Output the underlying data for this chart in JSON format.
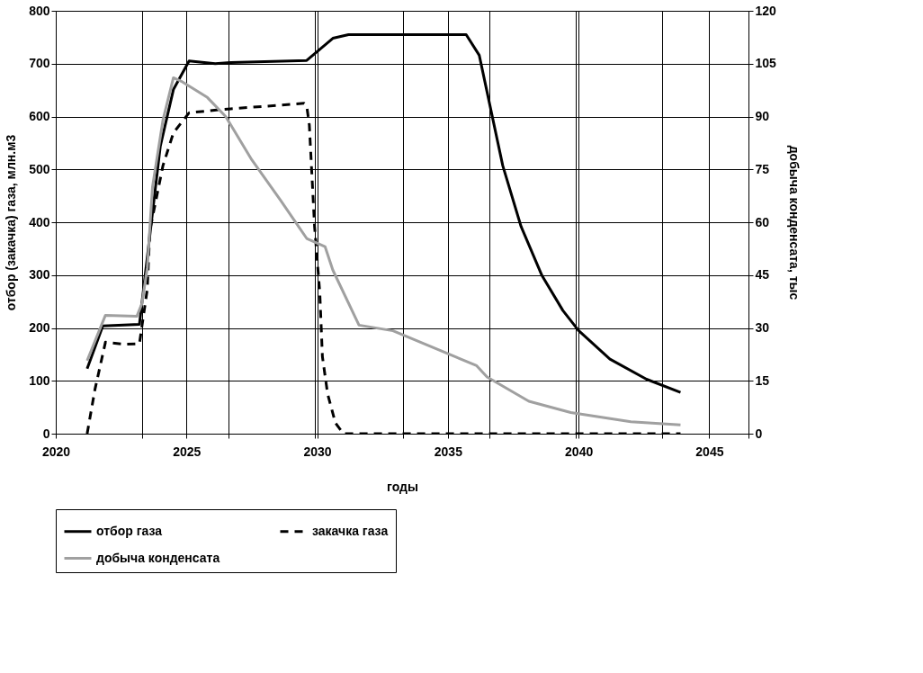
{
  "chart_data": {
    "type": "line",
    "xlabel": "годы",
    "ylabel": "отбор (закачка) газа, млн.м3",
    "y2label": "добыча конденсата, тыс",
    "xlim": [
      2020,
      2046.5
    ],
    "xticks": [
      2020,
      {
        "value": 2023.3,
        "label": null
      },
      2025,
      {
        "value": 2026.6,
        "label": null
      },
      {
        "value": 2029.9,
        "label": null
      },
      2030,
      {
        "value": 2033.3,
        "label": null
      },
      2035,
      {
        "value": 2036.6,
        "label": null
      },
      {
        "value": 2039.9,
        "label": null
      },
      2040,
      {
        "value": 2043.2,
        "label": null
      },
      2045,
      {
        "value": 2046.5,
        "label": null
      }
    ],
    "ylim": [
      0,
      800
    ],
    "yticks": [
      0,
      100,
      200,
      300,
      400,
      500,
      600,
      700,
      800
    ],
    "y2lim": [
      0,
      120
    ],
    "y2ticks": [
      0,
      15,
      30,
      45,
      60,
      75,
      90,
      105,
      120
    ],
    "grid": true,
    "legend": "bottom",
    "series": [
      {
        "name": "отбор газа",
        "color": "#000000",
        "line_style": "solid",
        "x": [
          2021.2,
          2021.8,
          2023.2,
          2024.0,
          2024.5,
          2025.1,
          2026.1,
          2026.7,
          2029.6,
          2030.6,
          2031.2,
          2035.7,
          2036.2,
          2037.1,
          2037.8,
          2038.6,
          2039.4,
          2040.0,
          2041.2,
          2042.6,
          2043.9
        ],
        "values": [
          123,
          204,
          207,
          544,
          651,
          705,
          700,
          702,
          706,
          748,
          755,
          755,
          716,
          507,
          392,
          299,
          233,
          195,
          141,
          103,
          78
        ]
      },
      {
        "name": "закачка газа",
        "color": "#000000",
        "line_style": "dashed",
        "x": [
          2021.2,
          2021.5,
          2021.9,
          2022.6,
          2023.2,
          2023.5,
          2023.6,
          2024.1,
          2024.5,
          2025.1,
          2026.3,
          2029.5,
          2029.6,
          2029.7,
          2029.9,
          2030.1,
          2030.2,
          2030.4,
          2030.7,
          2031.0,
          2043.9
        ],
        "values": [
          0,
          84,
          173,
          169,
          170,
          273,
          385,
          507,
          569,
          607,
          613,
          625,
          620,
          584,
          392,
          267,
          146,
          75,
          20,
          0,
          0
        ]
      },
      {
        "name": "добыча конденсата",
        "color": "#a0a0a0",
        "line_style": "solid",
        "axis": "y2",
        "x": [
          2021.2,
          2021.9,
          2023.1,
          2023.3,
          2023.5,
          2023.7,
          2024.1,
          2024.5,
          2024.8,
          2025.8,
          2026.5,
          2027.5,
          2028.6,
          2029.6,
          2030.3,
          2030.6,
          2031.6,
          2032.9,
          2036.1,
          2036.5,
          2038.1,
          2039.7,
          2042.0,
          2043.9
        ],
        "values": [
          20.7,
          33.6,
          33.3,
          37,
          47,
          70,
          89,
          101,
          100,
          95.4,
          90,
          77.7,
          66.2,
          55.4,
          53.1,
          46.4,
          30.8,
          29.2,
          19.3,
          16.1,
          9.2,
          6,
          3.4,
          2.5
        ]
      }
    ]
  }
}
